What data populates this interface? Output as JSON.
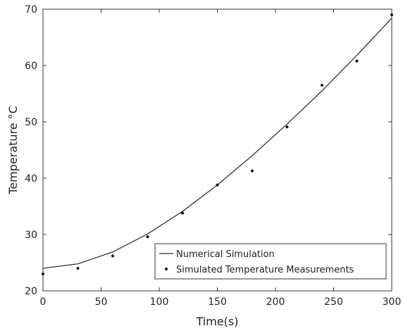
{
  "chart_data": {
    "type": "line",
    "xlabel": "Time(s)",
    "ylabel": "Temperature °C",
    "xlim": [
      0,
      300
    ],
    "ylim": [
      20,
      70
    ],
    "xticks": [
      0,
      50,
      100,
      150,
      200,
      250,
      300
    ],
    "yticks": [
      20,
      30,
      40,
      50,
      60,
      70
    ],
    "grid": false,
    "legend_position": "bottom-right",
    "series": [
      {
        "name": "Numerical Simulation",
        "style": "line",
        "color": "#333333",
        "x": [
          0,
          30,
          60,
          90,
          120,
          150,
          180,
          210,
          240,
          270,
          300
        ],
        "y": [
          24.0,
          24.8,
          26.9,
          30.1,
          34.1,
          38.8,
          44.0,
          49.6,
          55.5,
          61.8,
          68.4
        ]
      },
      {
        "name": "Simulated Temperature Measurements",
        "style": "markers",
        "color": "#111111",
        "x": [
          0,
          30,
          60,
          90,
          120,
          150,
          180,
          210,
          240,
          270,
          300
        ],
        "y": [
          23.0,
          24.0,
          26.2,
          29.6,
          33.8,
          38.8,
          41.3,
          49.1,
          56.5,
          60.8,
          69.0
        ]
      }
    ]
  }
}
